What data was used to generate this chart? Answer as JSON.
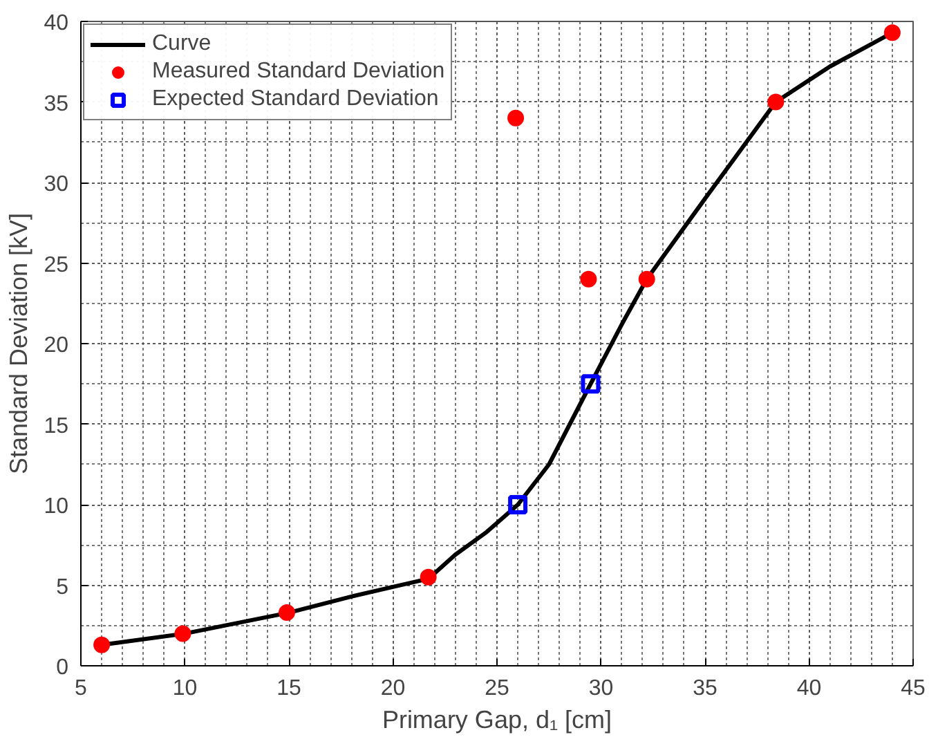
{
  "chart_data": {
    "type": "line",
    "xlabel": "Primary Gap, d₁ [cm]",
    "ylabel": "Standard Deviation [kV]",
    "xlim": [
      5,
      45
    ],
    "ylim": [
      0,
      40
    ],
    "xticks": [
      5,
      10,
      15,
      20,
      25,
      30,
      35,
      40,
      45
    ],
    "yticks": [
      0,
      5,
      10,
      15,
      20,
      25,
      30,
      35,
      40
    ],
    "grid": true,
    "legend": "top left",
    "series": [
      {
        "name": "Curve",
        "color": "#000000",
        "marker": "none",
        "line_style": "solid",
        "x": [
          6,
          10,
          15,
          18,
          20,
          21.7,
          23,
          24.5,
          26,
          27.5,
          29.5,
          31,
          32.2,
          35,
          38.4,
          41,
          44
        ],
        "values": [
          1.3,
          2,
          3.3,
          4.3,
          4.9,
          5.4,
          6.9,
          8.3,
          10,
          12.5,
          17.5,
          21.2,
          24,
          29,
          35,
          37.2,
          39.3
        ]
      },
      {
        "name": "Measured Standard Deviation",
        "type": "scatter",
        "color": "#ff0000",
        "marker": "circle",
        "x": [
          6,
          9.9,
          14.9,
          21.7,
          25.9,
          29.4,
          32.2,
          38.4,
          44
        ],
        "values": [
          1.3,
          2,
          3.3,
          5.5,
          34,
          24,
          24,
          35,
          39.3
        ]
      },
      {
        "name": "Expected Standard Deviation",
        "type": "scatter",
        "color": "#0000ff",
        "marker": "square",
        "x": [
          26,
          29.5
        ],
        "values": [
          10,
          17.5
        ]
      }
    ]
  }
}
